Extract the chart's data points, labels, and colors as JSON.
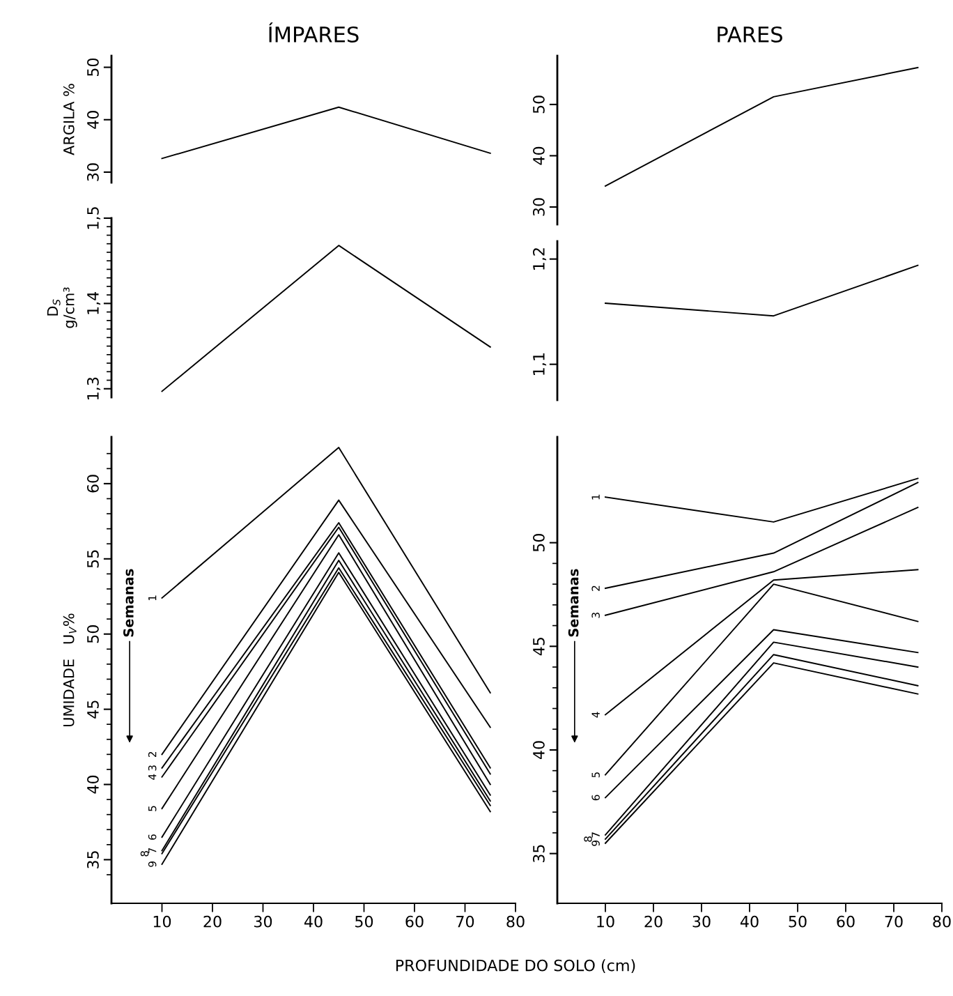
{
  "chart_data": [
    {
      "type": "line",
      "title": "ÍMPARES",
      "ylabel": "ARGILA %",
      "x": [
        10,
        45,
        75
      ],
      "xlim": [
        0,
        80
      ],
      "ylim": [
        28,
        52.2
      ],
      "yticks": [
        30,
        40,
        50
      ],
      "tick_labels": "y",
      "series": [
        {
          "color": "#000000",
          "values": [
            32.6,
            42.4,
            33.6
          ]
        }
      ]
    },
    {
      "type": "line",
      "title": "PARES",
      "x": [
        10,
        45,
        75
      ],
      "xlim": [
        0,
        80
      ],
      "ylim": [
        26.6,
        59.5
      ],
      "yticks": [
        30,
        40,
        50
      ],
      "tick_labels": "y",
      "series": [
        {
          "color": "#000000",
          "values": [
            34.1,
            51.5,
            57.2
          ]
        }
      ]
    },
    {
      "type": "line",
      "ylabel": "D$_{S}$\ng/cm³",
      "x": [
        10,
        45,
        75
      ],
      "xlim": [
        0,
        80
      ],
      "ylim": [
        1.29,
        1.5
      ],
      "tick_labels": "y",
      "yticks": [
        {
          "value": 1.3,
          "label": "1,3"
        },
        {
          "value": 1.4,
          "label": "1,4"
        },
        {
          "value": 1.5,
          "label": "1,5"
        },
        {
          "value": 1.31,
          "label": null
        },
        {
          "value": 1.32,
          "label": null
        },
        {
          "value": 1.33,
          "label": null
        },
        {
          "value": 1.34,
          "label": null
        },
        {
          "value": 1.35,
          "label": null
        },
        {
          "value": 1.36,
          "label": null
        },
        {
          "value": 1.37,
          "label": null
        },
        {
          "value": 1.38,
          "label": null
        },
        {
          "value": 1.39,
          "label": null
        },
        {
          "value": 1.41,
          "label": null
        },
        {
          "value": 1.42,
          "label": null
        },
        {
          "value": 1.43,
          "label": null
        },
        {
          "value": 1.44,
          "label": null
        },
        {
          "value": 1.45,
          "label": null
        },
        {
          "value": 1.46,
          "label": null
        },
        {
          "value": 1.47,
          "label": null
        },
        {
          "value": 1.48,
          "label": null
        },
        {
          "value": 1.49,
          "label": null
        }
      ],
      "series": [
        {
          "color": "#000000",
          "values": [
            1.297,
            1.468,
            1.349
          ]
        }
      ]
    },
    {
      "type": "line",
      "x": [
        10,
        45,
        75
      ],
      "xlim": [
        0,
        80
      ],
      "ylim": [
        1.066,
        1.217
      ],
      "tick_labels": "y",
      "yticks": [
        {
          "value": 1.1,
          "label": "1,1"
        },
        {
          "value": 1.2,
          "label": "1,2"
        }
      ],
      "series": [
        {
          "color": "#000000",
          "values": [
            1.158,
            1.146,
            1.194
          ]
        }
      ]
    },
    {
      "type": "line",
      "ylabel": "UMIDADE   U$_{V}$%",
      "xlabel": "PROFUNDIDADE DO SOLO (cm)",
      "x": [
        10,
        45,
        75
      ],
      "xlim": [
        0,
        80
      ],
      "ylim": [
        32.1,
        63.1
      ],
      "xticks": [
        10,
        20,
        30,
        40,
        50,
        60,
        70,
        80
      ],
      "yticks": [
        35,
        40,
        45,
        50,
        55,
        60,
        {
          "value": 34,
          "label": null
        },
        {
          "value": 36,
          "label": null
        },
        {
          "value": 37,
          "label": null
        },
        {
          "value": 38,
          "label": null
        },
        {
          "value": 39,
          "label": null
        },
        {
          "value": 41,
          "label": null
        },
        {
          "value": 42,
          "label": null
        },
        {
          "value": 43,
          "label": null
        },
        {
          "value": 44,
          "label": null
        },
        {
          "value": 46,
          "label": null
        },
        {
          "value": 47,
          "label": null
        },
        {
          "value": 48,
          "label": null
        },
        {
          "value": 49,
          "label": null
        },
        {
          "value": 51,
          "label": null
        },
        {
          "value": 52,
          "label": null
        },
        {
          "value": 53,
          "label": null
        },
        {
          "value": 54,
          "label": null
        },
        {
          "value": 56,
          "label": null
        },
        {
          "value": 57,
          "label": null
        },
        {
          "value": 58,
          "label": null
        },
        {
          "value": 59,
          "label": null
        },
        {
          "value": 61,
          "label": null
        },
        {
          "value": 62,
          "label": null
        }
      ],
      "annotations": [
        "Semanas"
      ],
      "series": [
        {
          "name": "1",
          "color": "#000000",
          "values": [
            52.4,
            62.4,
            46.1
          ]
        },
        {
          "name": "2",
          "color": "#000000",
          "values": [
            42.0,
            58.9,
            43.8
          ]
        },
        {
          "name": "3",
          "color": "#000000",
          "values": [
            41.1,
            57.4,
            41.1
          ]
        },
        {
          "name": "4",
          "color": "#000000",
          "values": [
            40.5,
            57.1,
            40.7
          ]
        },
        {
          "name": "5",
          "color": "#000000",
          "values": [
            38.4,
            56.6,
            40.0
          ]
        },
        {
          "name": "6",
          "color": "#000000",
          "values": [
            36.5,
            55.4,
            39.3
          ]
        },
        {
          "name": "7",
          "color": "#000000",
          "values": [
            35.6,
            54.9,
            38.9
          ]
        },
        {
          "name": "8",
          "color": "#000000",
          "values": [
            35.4,
            54.4,
            38.6
          ]
        },
        {
          "name": "9",
          "color": "#000000",
          "values": [
            34.7,
            54.1,
            38.2
          ]
        }
      ]
    },
    {
      "type": "line",
      "x": [
        10,
        45,
        75
      ],
      "xlim": [
        0,
        80
      ],
      "ylim": [
        32.6,
        55.1
      ],
      "xticks": [
        10,
        20,
        30,
        40,
        50,
        60,
        70,
        80
      ],
      "yticks": [
        35,
        40,
        45,
        50,
        {
          "value": 36,
          "label": null
        },
        {
          "value": 37,
          "label": null
        },
        {
          "value": 38,
          "label": null
        },
        {
          "value": 39,
          "label": null
        },
        {
          "value": 41,
          "label": null
        },
        {
          "value": 42,
          "label": null
        },
        {
          "value": 43,
          "label": null
        },
        {
          "value": 44,
          "label": null
        },
        {
          "value": 46,
          "label": null
        },
        {
          "value": 47,
          "label": null
        },
        {
          "value": 48,
          "label": null
        },
        {
          "value": 49,
          "label": null
        }
      ],
      "annotations": [
        "Semanas"
      ],
      "series": [
        {
          "name": "1",
          "color": "#000000",
          "values": [
            52.2,
            51.0,
            53.1
          ]
        },
        {
          "name": "2",
          "color": "#000000",
          "values": [
            47.8,
            49.5,
            52.9
          ]
        },
        {
          "name": "3",
          "color": "#000000",
          "values": [
            46.5,
            48.6,
            51.7
          ]
        },
        {
          "name": "4",
          "color": "#000000",
          "values": [
            41.7,
            48.2,
            48.7
          ]
        },
        {
          "name": "5",
          "color": "#000000",
          "values": [
            38.8,
            48.0,
            46.2
          ]
        },
        {
          "name": "6",
          "color": "#000000",
          "values": [
            37.7,
            45.8,
            44.7
          ]
        },
        {
          "name": "7",
          "color": "#000000",
          "values": [
            35.9,
            45.2,
            44.0
          ]
        },
        {
          "name": "8",
          "color": "#000000",
          "values": [
            35.7,
            44.6,
            43.1
          ]
        },
        {
          "name": "9",
          "color": "#000000",
          "values": [
            35.5,
            44.2,
            42.7
          ]
        }
      ]
    }
  ]
}
